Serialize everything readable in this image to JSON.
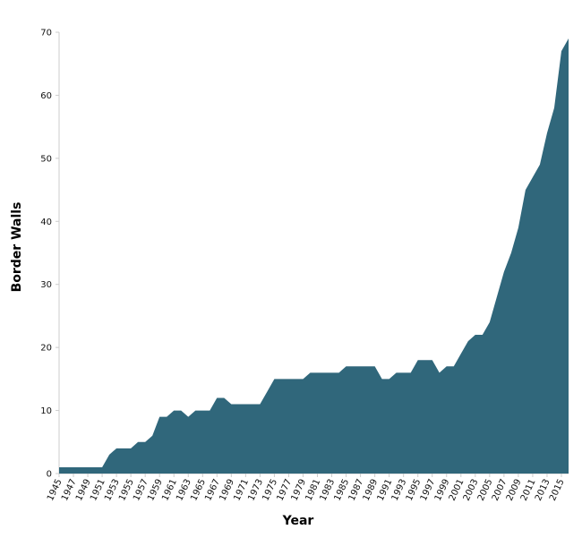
{
  "chart_data": {
    "type": "area",
    "title": "",
    "xlabel": "Year",
    "ylabel": "Border Walls",
    "xlim": [
      1945,
      2016
    ],
    "ylim": [
      0,
      70
    ],
    "y_ticks": [
      0,
      10,
      20,
      30,
      40,
      50,
      60,
      70
    ],
    "x_ticks": [
      1945,
      1947,
      1949,
      1951,
      1953,
      1955,
      1957,
      1959,
      1961,
      1963,
      1965,
      1967,
      1969,
      1971,
      1973,
      1975,
      1977,
      1979,
      1981,
      1983,
      1985,
      1987,
      1989,
      1991,
      1993,
      1995,
      1997,
      1999,
      2001,
      2003,
      2005,
      2007,
      2009,
      2011,
      2013,
      2015
    ],
    "grid": false,
    "legend": "none",
    "fill_color": "#30677b",
    "series": [
      {
        "x": [
          1945,
          1946,
          1947,
          1948,
          1949,
          1950,
          1951,
          1952,
          1953,
          1954,
          1955,
          1956,
          1957,
          1958,
          1959,
          1960,
          1961,
          1962,
          1963,
          1964,
          1965,
          1966,
          1967,
          1968,
          1969,
          1970,
          1971,
          1972,
          1973,
          1974,
          1975,
          1976,
          1977,
          1978,
          1979,
          1980,
          1981,
          1982,
          1983,
          1984,
          1985,
          1986,
          1987,
          1988,
          1989,
          1990,
          1991,
          1992,
          1993,
          1994,
          1995,
          1996,
          1997,
          1998,
          1999,
          2000,
          2001,
          2002,
          2003,
          2004,
          2005,
          2006,
          2007,
          2008,
          2009,
          2010,
          2011,
          2012,
          2013,
          2014,
          2015,
          2016
        ],
        "values": [
          1,
          1,
          1,
          1,
          1,
          1,
          1,
          3,
          4,
          4,
          4,
          5,
          5,
          6,
          9,
          9,
          10,
          10,
          9,
          10,
          10,
          10,
          12,
          12,
          11,
          11,
          11,
          11,
          11,
          13,
          15,
          15,
          15,
          15,
          15,
          16,
          16,
          16,
          16,
          16,
          17,
          17,
          17,
          17,
          17,
          15,
          15,
          16,
          16,
          16,
          18,
          18,
          18,
          16,
          17,
          17,
          19,
          21,
          22,
          22,
          24,
          28,
          32,
          35,
          39,
          45,
          47,
          49,
          54,
          58,
          67,
          69
        ]
      }
    ]
  }
}
